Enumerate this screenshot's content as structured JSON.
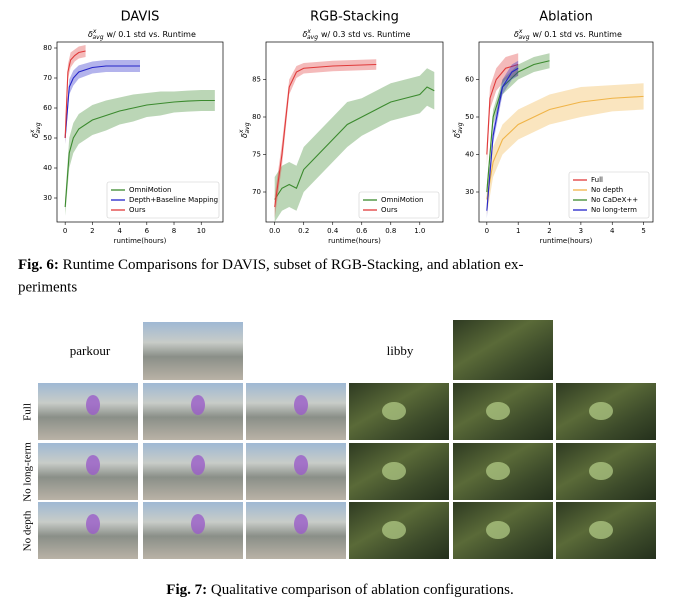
{
  "chart_data": [
    {
      "type": "line",
      "title": "DAVIS",
      "subtitle": {
        "symbol": "δ",
        "sup": "x",
        "sub": "avg",
        "text": "w/ 0.1 std vs. Runtime"
      },
      "ylabel": {
        "symbol": "δ",
        "sup": "x",
        "sub": "avg"
      },
      "xlabel": "runtime(hours)",
      "xlim": [
        -0.6,
        11.6
      ],
      "xticks": [
        0,
        2,
        4,
        6,
        8,
        10
      ],
      "ylim": [
        22,
        82
      ],
      "yticks": [
        30,
        40,
        50,
        60,
        70,
        80
      ],
      "legend": "lower right",
      "series": [
        {
          "name": "OmniMotion",
          "color": "#3b8a2e",
          "x": [
            0,
            0.3,
            0.6,
            1,
            2,
            3,
            4,
            5,
            6,
            7,
            8,
            9,
            10,
            11
          ],
          "values": [
            27,
            45,
            50,
            53,
            56,
            57.5,
            59,
            60,
            61,
            61.5,
            62,
            62.3,
            62.5,
            62.5
          ],
          "std": [
            3,
            5,
            5,
            5,
            5,
            5,
            4.5,
            4.5,
            4,
            4,
            3.5,
            3.5,
            3.5,
            3.5
          ]
        },
        {
          "name": "Depth+Baseline Mapping",
          "color": "#2424c8",
          "x": [
            0,
            0.3,
            0.6,
            1,
            2,
            3,
            4,
            5,
            5.5
          ],
          "values": [
            50,
            67,
            70,
            72,
            73.5,
            74,
            74,
            74,
            74
          ],
          "std": [
            2,
            2.5,
            2.5,
            2.2,
            2,
            2,
            2,
            2,
            2
          ]
        },
        {
          "name": "Ours",
          "color": "#e03a3a",
          "x": [
            0,
            0.2,
            0.4,
            0.7,
            1,
            1.5
          ],
          "values": [
            50,
            72,
            76,
            77.5,
            78.5,
            79
          ],
          "std": [
            2,
            2.5,
            2.5,
            2,
            2,
            2
          ]
        }
      ]
    },
    {
      "type": "line",
      "title": "RGB-Stacking",
      "subtitle": {
        "symbol": "δ",
        "sup": "x",
        "sub": "avg",
        "text": "w/ 0.3 std vs. Runtime"
      },
      "ylabel": {
        "symbol": "δ",
        "sup": "x",
        "sub": "avg"
      },
      "xlabel": "runtime(hours)",
      "xlim": [
        -0.06,
        1.16
      ],
      "xticks": [
        {
          "value": 0,
          "label": "0.0"
        },
        0.2,
        0.4,
        0.6,
        0.8,
        {
          "value": 1,
          "label": "1.0"
        }
      ],
      "ylim": [
        66,
        90
      ],
      "yticks": [
        70,
        75,
        80,
        85
      ],
      "legend": "lower right",
      "series": [
        {
          "name": "OmniMotion",
          "color": "#3b8a2e",
          "x": [
            0,
            0.05,
            0.1,
            0.15,
            0.2,
            0.3,
            0.4,
            0.5,
            0.6,
            0.7,
            0.8,
            0.9,
            1.0,
            1.05,
            1.1
          ],
          "values": [
            69,
            70.5,
            71,
            70.5,
            73,
            75,
            77,
            79,
            80,
            81,
            82,
            82.5,
            83,
            84,
            83.5
          ],
          "std": [
            3,
            3,
            3,
            3,
            3,
            3,
            3,
            3,
            2.5,
            2.5,
            2.5,
            2.5,
            2.5,
            2.5,
            2.5
          ]
        },
        {
          "name": "Ours",
          "color": "#e03a3a",
          "x": [
            0,
            0.05,
            0.1,
            0.15,
            0.2,
            0.4,
            0.7
          ],
          "values": [
            68,
            75,
            84,
            86,
            86.5,
            86.8,
            87
          ],
          "std": [
            1.5,
            1.5,
            1,
            0.8,
            0.7,
            0.7,
            0.7
          ]
        }
      ]
    },
    {
      "type": "line",
      "title": "Ablation",
      "subtitle": {
        "symbol": "δ",
        "sup": "x",
        "sub": "avg",
        "text": "w/ 0.1 std vs. Runtime"
      },
      "ylabel": {
        "symbol": "δ",
        "sup": "x",
        "sub": "avg"
      },
      "xlabel": "runtime(hours)",
      "xlim": [
        -0.25,
        5.3
      ],
      "xticks": [
        0,
        1,
        2,
        3,
        4,
        5
      ],
      "ylim": [
        22,
        70
      ],
      "yticks": [
        30,
        40,
        50,
        60
      ],
      "legend": "lower right",
      "series": [
        {
          "name": "Full",
          "color": "#e03a3a",
          "x": [
            0,
            0.1,
            0.3,
            0.6,
            1.0
          ],
          "values": [
            40,
            55,
            60,
            63,
            64
          ],
          "std": [
            3,
            3,
            3,
            3,
            3
          ]
        },
        {
          "name": "No depth",
          "color": "#f0b448",
          "x": [
            0,
            0.2,
            0.5,
            1,
            2,
            3,
            4,
            5
          ],
          "values": [
            28,
            38,
            44,
            48,
            52,
            54,
            55,
            55.5
          ],
          "std": [
            4,
            4,
            4,
            4,
            4,
            4,
            3.5,
            3.5
          ]
        },
        {
          "name": "No CaDeX++",
          "color": "#3b8a2e",
          "x": [
            0,
            0.2,
            0.5,
            1,
            1.5,
            2
          ],
          "values": [
            30,
            50,
            58,
            62,
            64,
            65
          ],
          "std": [
            2,
            2,
            2,
            2,
            2,
            2
          ]
        },
        {
          "name": "No long-term",
          "color": "#2424c8",
          "x": [
            0,
            0.2,
            0.5,
            0.8,
            1
          ],
          "values": [
            25,
            45,
            58,
            62,
            63
          ],
          "std": [
            2,
            2,
            2,
            2,
            2
          ]
        }
      ]
    }
  ],
  "fig6_caption": {
    "label": "Fig. 6:",
    "line1": "Runtime Comparisons for DAVIS, subset of RGB-Stacking, and ablation ex-",
    "line2": "periments"
  },
  "fig7": {
    "scenes": [
      "parkour",
      "libby"
    ],
    "rows": [
      "Full",
      "No long-term",
      "No depth"
    ],
    "caption": {
      "label": "Fig. 7:",
      "text": "Qualitative comparison of ablation configurations."
    }
  }
}
